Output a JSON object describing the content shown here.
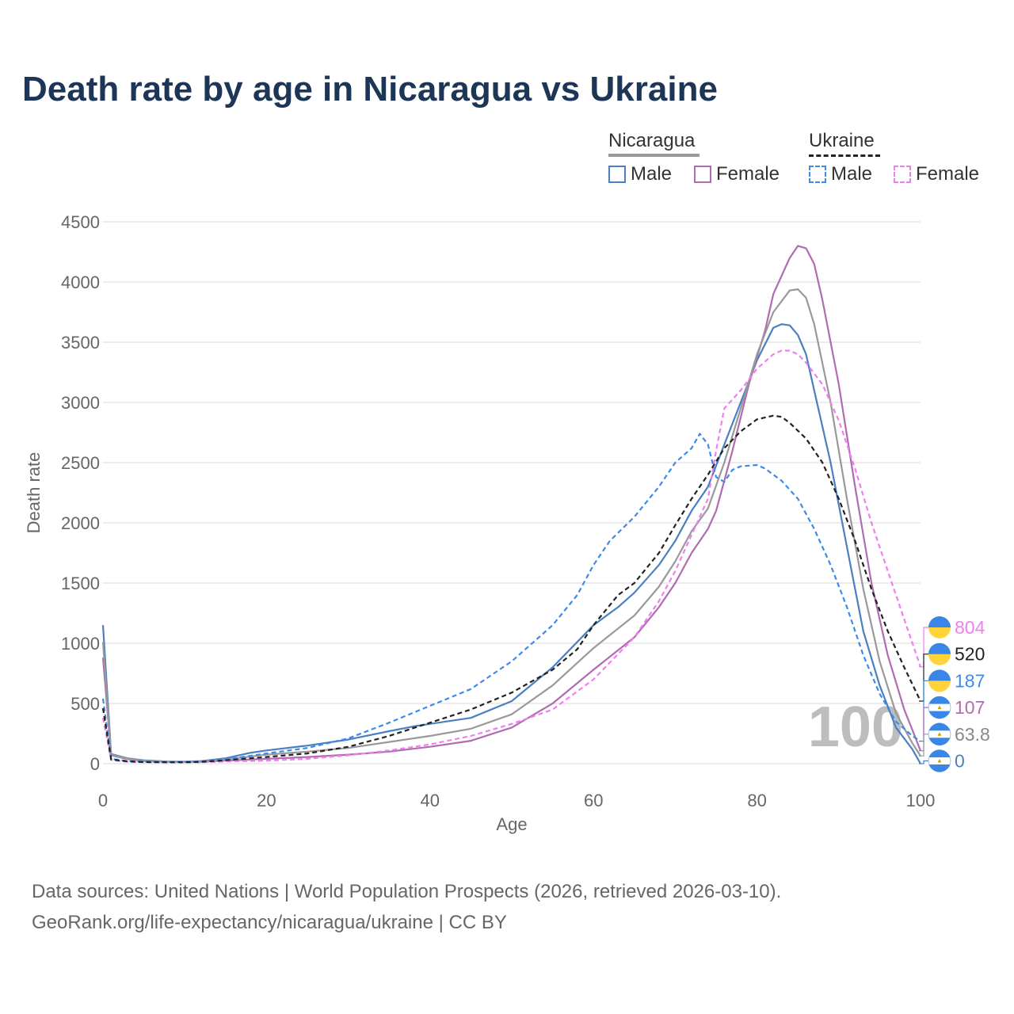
{
  "title": "Death rate by age in Nicaragua vs Ukraine",
  "legend": {
    "groups": [
      {
        "name": "Nicaragua",
        "items": [
          "Male",
          "Female"
        ]
      },
      {
        "name": "Ukraine",
        "items": [
          "Male",
          "Female"
        ]
      }
    ]
  },
  "footer": {
    "line1": "Data sources: United Nations | World Population Prospects (2026, retrieved 2026-03-10).",
    "line2": "GeoRank.org/life-expectancy/nicaragua/ukraine | CC BY"
  },
  "chart_data": {
    "type": "line",
    "title": "Death rate by age in Nicaragua vs Ukraine",
    "xlabel": "Age",
    "ylabel": "Death rate",
    "xlim": [
      0,
      100
    ],
    "ylim": [
      0,
      4500
    ],
    "xticks": [
      0,
      20,
      40,
      60,
      80,
      100
    ],
    "yticks": [
      0,
      500,
      1000,
      1500,
      2000,
      2500,
      3000,
      3500,
      4000,
      4500
    ],
    "age_watermark": "100",
    "series": [
      {
        "name": "Nicaragua Male",
        "color": "#4a7fc1",
        "dash": false,
        "end_label": "0",
        "points": [
          [
            0,
            1150
          ],
          [
            1,
            80
          ],
          [
            3,
            45
          ],
          [
            5,
            28
          ],
          [
            8,
            18
          ],
          [
            10,
            18
          ],
          [
            12,
            22
          ],
          [
            15,
            45
          ],
          [
            18,
            90
          ],
          [
            20,
            110
          ],
          [
            25,
            150
          ],
          [
            30,
            200
          ],
          [
            35,
            270
          ],
          [
            38,
            310
          ],
          [
            40,
            330
          ],
          [
            45,
            380
          ],
          [
            50,
            520
          ],
          [
            55,
            800
          ],
          [
            60,
            1150
          ],
          [
            63,
            1300
          ],
          [
            65,
            1420
          ],
          [
            68,
            1650
          ],
          [
            70,
            1850
          ],
          [
            72,
            2100
          ],
          [
            74,
            2300
          ],
          [
            76,
            2650
          ],
          [
            78,
            3000
          ],
          [
            80,
            3350
          ],
          [
            82,
            3620
          ],
          [
            83,
            3650
          ],
          [
            84,
            3640
          ],
          [
            85,
            3560
          ],
          [
            86,
            3400
          ],
          [
            87,
            3100
          ],
          [
            89,
            2500
          ],
          [
            91,
            1800
          ],
          [
            93,
            1100
          ],
          [
            95,
            650
          ],
          [
            97,
            300
          ],
          [
            99,
            120
          ],
          [
            100,
            0
          ]
        ]
      },
      {
        "name": "Nicaragua Female",
        "color": "#b06cb0",
        "dash": false,
        "end_label": "107",
        "points": [
          [
            0,
            880
          ],
          [
            1,
            70
          ],
          [
            3,
            38
          ],
          [
            5,
            22
          ],
          [
            8,
            15
          ],
          [
            10,
            14
          ],
          [
            12,
            16
          ],
          [
            15,
            25
          ],
          [
            20,
            40
          ],
          [
            25,
            55
          ],
          [
            30,
            75
          ],
          [
            35,
            100
          ],
          [
            40,
            140
          ],
          [
            45,
            190
          ],
          [
            50,
            300
          ],
          [
            55,
            500
          ],
          [
            60,
            780
          ],
          [
            65,
            1050
          ],
          [
            68,
            1300
          ],
          [
            70,
            1500
          ],
          [
            72,
            1750
          ],
          [
            74,
            1950
          ],
          [
            75,
            2100
          ],
          [
            77,
            2600
          ],
          [
            79,
            3150
          ],
          [
            81,
            3600
          ],
          [
            82,
            3900
          ],
          [
            84,
            4200
          ],
          [
            85,
            4300
          ],
          [
            86,
            4280
          ],
          [
            87,
            4150
          ],
          [
            88,
            3850
          ],
          [
            90,
            3150
          ],
          [
            92,
            2300
          ],
          [
            94,
            1500
          ],
          [
            96,
            900
          ],
          [
            98,
            450
          ],
          [
            99,
            280
          ],
          [
            100,
            107
          ]
        ]
      },
      {
        "name": "Nicaragua Total",
        "color": "#999999",
        "dash": false,
        "end_label": "63.8",
        "points": [
          [
            0,
            1010
          ],
          [
            1,
            75
          ],
          [
            3,
            42
          ],
          [
            5,
            25
          ],
          [
            8,
            16
          ],
          [
            10,
            16
          ],
          [
            12,
            19
          ],
          [
            15,
            35
          ],
          [
            20,
            75
          ],
          [
            25,
            100
          ],
          [
            30,
            130
          ],
          [
            35,
            180
          ],
          [
            40,
            230
          ],
          [
            45,
            290
          ],
          [
            50,
            410
          ],
          [
            55,
            650
          ],
          [
            60,
            960
          ],
          [
            65,
            1230
          ],
          [
            68,
            1470
          ],
          [
            70,
            1680
          ],
          [
            72,
            1930
          ],
          [
            74,
            2120
          ],
          [
            76,
            2500
          ],
          [
            78,
            2950
          ],
          [
            80,
            3400
          ],
          [
            82,
            3750
          ],
          [
            84,
            3930
          ],
          [
            85,
            3940
          ],
          [
            86,
            3870
          ],
          [
            87,
            3650
          ],
          [
            89,
            3000
          ],
          [
            91,
            2200
          ],
          [
            93,
            1450
          ],
          [
            95,
            850
          ],
          [
            97,
            420
          ],
          [
            99,
            170
          ],
          [
            100,
            63.8
          ]
        ]
      },
      {
        "name": "Ukraine Male",
        "color": "#3d8be8",
        "dash": true,
        "end_label": "187",
        "points": [
          [
            0,
            540
          ],
          [
            1,
            40
          ],
          [
            3,
            22
          ],
          [
            5,
            16
          ],
          [
            8,
            14
          ],
          [
            10,
            14
          ],
          [
            12,
            18
          ],
          [
            15,
            35
          ],
          [
            18,
            65
          ],
          [
            20,
            85
          ],
          [
            25,
            130
          ],
          [
            30,
            210
          ],
          [
            35,
            340
          ],
          [
            40,
            480
          ],
          [
            45,
            620
          ],
          [
            50,
            850
          ],
          [
            55,
            1150
          ],
          [
            58,
            1400
          ],
          [
            60,
            1650
          ],
          [
            62,
            1850
          ],
          [
            65,
            2050
          ],
          [
            68,
            2300
          ],
          [
            70,
            2500
          ],
          [
            72,
            2620
          ],
          [
            73,
            2740
          ],
          [
            74,
            2650
          ],
          [
            75,
            2380
          ],
          [
            76,
            2340
          ],
          [
            77,
            2440
          ],
          [
            78,
            2470
          ],
          [
            80,
            2480
          ],
          [
            81,
            2450
          ],
          [
            83,
            2350
          ],
          [
            85,
            2200
          ],
          [
            87,
            1950
          ],
          [
            89,
            1650
          ],
          [
            91,
            1300
          ],
          [
            93,
            900
          ],
          [
            95,
            580
          ],
          [
            97,
            350
          ],
          [
            99,
            230
          ],
          [
            100,
            187
          ]
        ]
      },
      {
        "name": "Ukraine Female",
        "color": "#f07ef0",
        "dash": true,
        "end_label": "804",
        "points": [
          [
            0,
            380
          ],
          [
            1,
            30
          ],
          [
            3,
            16
          ],
          [
            5,
            12
          ],
          [
            8,
            10
          ],
          [
            10,
            10
          ],
          [
            12,
            12
          ],
          [
            15,
            18
          ],
          [
            20,
            25
          ],
          [
            25,
            40
          ],
          [
            30,
            70
          ],
          [
            35,
            110
          ],
          [
            40,
            160
          ],
          [
            45,
            230
          ],
          [
            50,
            330
          ],
          [
            55,
            450
          ],
          [
            60,
            700
          ],
          [
            65,
            1050
          ],
          [
            68,
            1350
          ],
          [
            70,
            1600
          ],
          [
            72,
            1900
          ],
          [
            74,
            2200
          ],
          [
            75,
            2600
          ],
          [
            76,
            2950
          ],
          [
            78,
            3100
          ],
          [
            80,
            3280
          ],
          [
            82,
            3400
          ],
          [
            83,
            3430
          ],
          [
            84,
            3430
          ],
          [
            85,
            3400
          ],
          [
            86,
            3330
          ],
          [
            88,
            3150
          ],
          [
            90,
            2850
          ],
          [
            92,
            2450
          ],
          [
            94,
            2000
          ],
          [
            96,
            1600
          ],
          [
            98,
            1200
          ],
          [
            100,
            804
          ]
        ]
      },
      {
        "name": "Ukraine Total",
        "color": "#222222",
        "dash": true,
        "end_label": "520",
        "points": [
          [
            0,
            460
          ],
          [
            1,
            35
          ],
          [
            3,
            19
          ],
          [
            5,
            14
          ],
          [
            8,
            12
          ],
          [
            10,
            12
          ],
          [
            12,
            15
          ],
          [
            15,
            28
          ],
          [
            20,
            55
          ],
          [
            25,
            85
          ],
          [
            30,
            140
          ],
          [
            35,
            230
          ],
          [
            40,
            340
          ],
          [
            45,
            450
          ],
          [
            50,
            590
          ],
          [
            55,
            780
          ],
          [
            58,
            950
          ],
          [
            60,
            1150
          ],
          [
            63,
            1400
          ],
          [
            65,
            1500
          ],
          [
            68,
            1750
          ],
          [
            70,
            1980
          ],
          [
            72,
            2200
          ],
          [
            74,
            2400
          ],
          [
            76,
            2620
          ],
          [
            78,
            2760
          ],
          [
            80,
            2860
          ],
          [
            82,
            2890
          ],
          [
            83,
            2880
          ],
          [
            84,
            2830
          ],
          [
            86,
            2700
          ],
          [
            88,
            2500
          ],
          [
            90,
            2200
          ],
          [
            92,
            1850
          ],
          [
            94,
            1450
          ],
          [
            96,
            1100
          ],
          [
            98,
            800
          ],
          [
            100,
            520
          ]
        ]
      }
    ]
  }
}
